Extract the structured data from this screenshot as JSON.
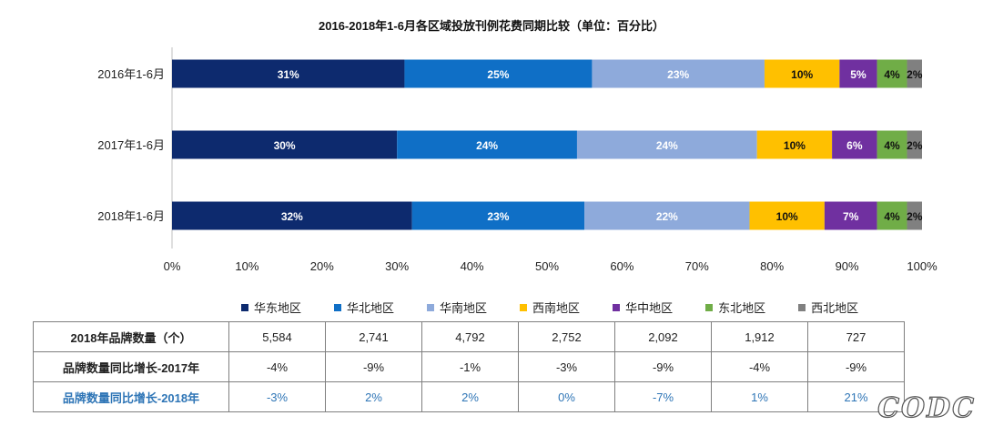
{
  "chart_data": {
    "type": "bar",
    "orientation": "horizontal-stacked-100",
    "title": "2016-2018年1-6月各区域投放刊例花费同期比较（单位：百分比）",
    "categories": [
      "2016年1-6月",
      "2017年1-6月",
      "2018年1-6月"
    ],
    "xlim": [
      0,
      100
    ],
    "xticks": [
      "0%",
      "10%",
      "20%",
      "30%",
      "40%",
      "50%",
      "60%",
      "70%",
      "80%",
      "90%",
      "100%"
    ],
    "legend_position": "bottom",
    "series": [
      {
        "name": "华东地区",
        "color": "#0d2a6e",
        "values": [
          31,
          30,
          32
        ],
        "labels": [
          "31%",
          "30%",
          "32%"
        ]
      },
      {
        "name": "华北地区",
        "color": "#0f6fc6",
        "values": [
          25,
          24,
          23
        ],
        "labels": [
          "25%",
          "24%",
          "23%"
        ]
      },
      {
        "name": "华南地区",
        "color": "#8eaadb",
        "values": [
          23,
          24,
          22
        ],
        "labels": [
          "23%",
          "24%",
          "22%"
        ]
      },
      {
        "name": "西南地区",
        "color": "#ffc000",
        "values": [
          10,
          10,
          10
        ],
        "labels": [
          "10%",
          "10%",
          "10%"
        ]
      },
      {
        "name": "华中地区",
        "color": "#7030a0",
        "values": [
          5,
          6,
          7
        ],
        "labels": [
          "5%",
          "6%",
          "7%"
        ]
      },
      {
        "name": "东北地区",
        "color": "#70ad47",
        "values": [
          4,
          4,
          4
        ],
        "labels": [
          "4%",
          "4%",
          "4%"
        ]
      },
      {
        "name": "西北地区",
        "color": "#808080",
        "values": [
          2,
          2,
          2
        ],
        "labels": [
          "2%",
          "2%",
          "2%"
        ]
      }
    ]
  },
  "table": {
    "rows": [
      {
        "header": "2018年品牌数量（个）",
        "cells": [
          "5,584",
          "2,741",
          "4,792",
          "2,752",
          "2,092",
          "1,912",
          "727"
        ]
      },
      {
        "header": "品牌数量同比增长-2017年",
        "cells": [
          "-4%",
          "-9%",
          "-1%",
          "-3%",
          "-9%",
          "-4%",
          "-9%"
        ]
      },
      {
        "header": "品牌数量同比增长-2018年",
        "cells": [
          "-3%",
          "2%",
          "2%",
          "0%",
          "-7%",
          "1%",
          "21%"
        ]
      }
    ]
  },
  "watermark": "CODC"
}
